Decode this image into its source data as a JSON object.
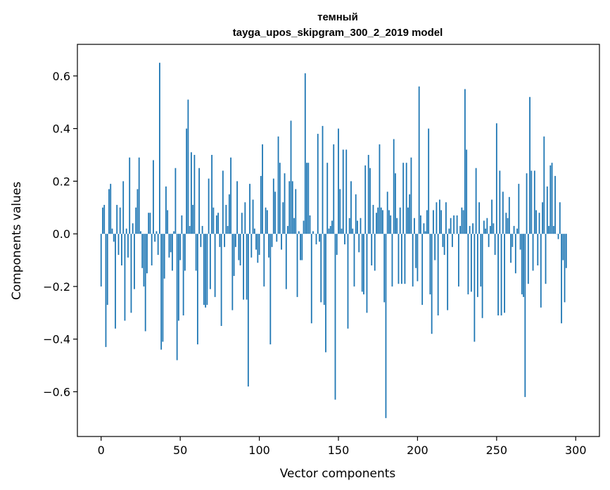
{
  "chart_data": {
    "type": "bar",
    "title_line1": "темный",
    "title_line2": "tayga_upos_skipgram_300_2_2019 model",
    "xlabel": "Vector components",
    "ylabel": "Components values",
    "xlim": [
      -15,
      315
    ],
    "ylim": [
      -0.77,
      0.72
    ],
    "xticks": [
      0,
      50,
      100,
      150,
      200,
      250,
      300
    ],
    "xtick_labels": [
      "0",
      "50",
      "100",
      "150",
      "200",
      "250",
      "300"
    ],
    "yticks": [
      -0.6,
      -0.4,
      -0.2,
      0.0,
      0.2,
      0.4,
      0.6
    ],
    "ytick_labels": [
      "−0.6",
      "−0.4",
      "−0.2",
      "0.0",
      "0.2",
      "0.4",
      "0.6"
    ],
    "bar_color": "#1f77b4",
    "grid": false,
    "values": [
      -0.2,
      0.1,
      0.11,
      -0.43,
      -0.27,
      0.17,
      0.19,
      0.02,
      -0.03,
      -0.36,
      0.11,
      -0.08,
      0.1,
      -0.12,
      0.2,
      -0.33,
      0.02,
      -0.09,
      0.29,
      -0.3,
      0.04,
      -0.21,
      0.1,
      0.17,
      0.29,
      0.01,
      -0.13,
      -0.2,
      -0.37,
      -0.15,
      0.08,
      0.08,
      -0.12,
      0.28,
      -0.03,
      0.01,
      -0.08,
      0.65,
      -0.44,
      -0.41,
      -0.17,
      0.18,
      0.09,
      -0.09,
      -0.07,
      -0.14,
      0.01,
      0.25,
      -0.48,
      -0.33,
      -0.1,
      0.07,
      -0.31,
      -0.14,
      0.4,
      0.51,
      0.03,
      0.31,
      0.11,
      0.3,
      -0.14,
      -0.42,
      0.25,
      -0.05,
      0.03,
      -0.27,
      -0.28,
      -0.27,
      0.21,
      -0.21,
      0.3,
      0.1,
      -0.24,
      0.07,
      0.08,
      -0.05,
      -0.35,
      0.24,
      -0.05,
      0.11,
      0.03,
      0.15,
      0.29,
      -0.29,
      -0.16,
      -0.05,
      0.2,
      -0.1,
      -0.12,
      0.08,
      -0.25,
      0.12,
      -0.25,
      -0.58,
      0.19,
      -0.09,
      0.13,
      0.02,
      -0.06,
      -0.11,
      -0.08,
      0.22,
      0.34,
      -0.2,
      0.1,
      0.09,
      -0.09,
      -0.42,
      -0.05,
      0.21,
      0.16,
      -0.03,
      0.37,
      0.27,
      -0.06,
      0.12,
      0.23,
      -0.21,
      0.03,
      0.2,
      0.43,
      0.2,
      0.06,
      0.17,
      -0.24,
      0.01,
      -0.1,
      -0.1,
      0.05,
      0.61,
      0.27,
      0.27,
      0.07,
      -0.34,
      0.01,
      0.0,
      -0.04,
      0.38,
      -0.03,
      -0.26,
      0.41,
      -0.27,
      -0.45,
      0.27,
      0.02,
      0.03,
      0.05,
      0.34,
      -0.63,
      -0.08,
      0.4,
      0.17,
      0.02,
      0.32,
      -0.04,
      0.32,
      -0.36,
      0.06,
      0.2,
      0.02,
      -0.2,
      0.15,
      0.05,
      -0.07,
      0.06,
      -0.22,
      -0.23,
      0.26,
      -0.3,
      0.3,
      0.25,
      -0.12,
      0.11,
      -0.14,
      0.08,
      0.1,
      0.34,
      0.1,
      0.09,
      -0.26,
      -0.7,
      0.16,
      0.09,
      0.07,
      -0.2,
      0.36,
      0.23,
      0.06,
      -0.19,
      0.1,
      -0.19,
      0.27,
      -0.19,
      0.27,
      0.1,
      0.15,
      0.29,
      -0.2,
      0.06,
      -0.13,
      -0.18,
      0.56,
      0.07,
      -0.27,
      0.04,
      0.01,
      0.09,
      0.4,
      -0.23,
      -0.38,
      0.09,
      -0.1,
      0.12,
      -0.31,
      0.13,
      0.09,
      -0.05,
      -0.08,
      0.12,
      -0.29,
      0.02,
      0.06,
      -0.05,
      0.07,
      0.0,
      0.07,
      -0.2,
      0.03,
      0.1,
      0.09,
      0.55,
      0.32,
      -0.23,
      0.03,
      -0.22,
      0.04,
      -0.41,
      0.25,
      -0.24,
      0.12,
      -0.2,
      -0.32,
      0.05,
      0.02,
      0.06,
      -0.05,
      0.03,
      0.13,
      0.04,
      -0.08,
      0.42,
      -0.31,
      0.24,
      -0.31,
      0.16,
      -0.3,
      0.08,
      0.06,
      0.14,
      -0.11,
      -0.05,
      0.03,
      -0.15,
      0.02,
      0.19,
      -0.06,
      -0.23,
      -0.24,
      -0.62,
      0.23,
      -0.19,
      0.52,
      0.24,
      -0.14,
      0.24,
      0.09,
      -0.12,
      0.08,
      -0.28,
      0.12,
      0.37,
      -0.19,
      0.18,
      0.03,
      0.26,
      0.27,
      0.03,
      0.22,
      0.0,
      -0.02,
      0.12,
      -0.34,
      -0.1,
      -0.26,
      -0.13
    ]
  }
}
